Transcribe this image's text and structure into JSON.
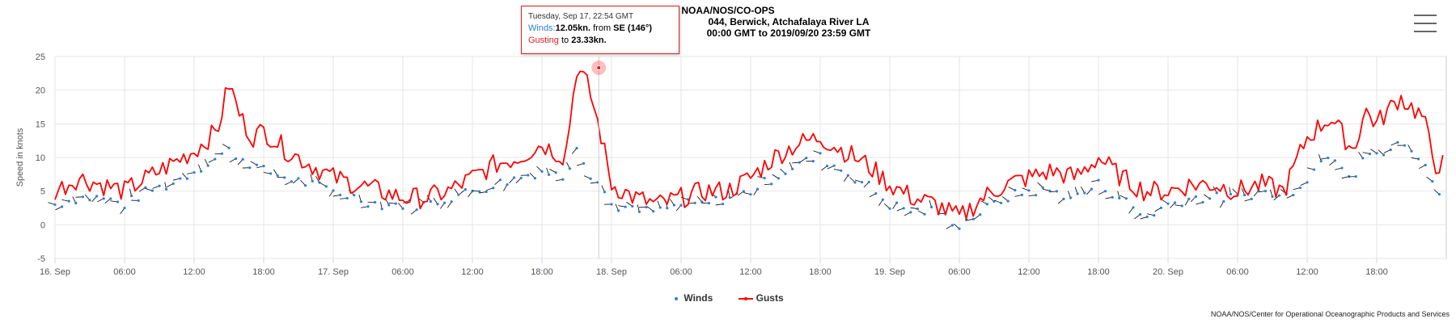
{
  "title": {
    "line1": "NOAA/NOS/CO-OPS",
    "line2": "044, Berwick, Atchafalaya River LA",
    "line3": "00:00 GMT to 2019/09/20 23:59 GMT"
  },
  "tooltip": {
    "date": "Tuesday, Sep 17, 22:54 GMT",
    "winds_label": "Winds:",
    "winds_value": "12.05kn.",
    "winds_from_text": "from",
    "winds_dir": "SE (146°)",
    "gust_label": "Gusting",
    "gust_to_text": "to",
    "gust_value": "23.33kn."
  },
  "legend": {
    "winds": "Winds",
    "gusts": "Gusts"
  },
  "credit": "NOAA/NOS/Center for Operational Oceanographic Products and Services",
  "colors": {
    "winds": "#2f7ed8",
    "gusts": "#ff0000",
    "arrows": "#000000",
    "grid": "#e6e6e6"
  },
  "chart_data": {
    "type": "line",
    "ylabel": "Speed in knots",
    "ylim": [
      -5,
      25
    ],
    "yticks": [
      -5,
      0,
      5,
      10,
      15,
      20,
      25
    ],
    "x_start": "2019-09-16 00:00 GMT",
    "x_end": "2019-09-20 23:59 GMT",
    "xtick_labels": [
      "16. Sep",
      "06:00",
      "12:00",
      "18:00",
      "17. Sep",
      "06:00",
      "12:00",
      "18:00",
      "18. Sep",
      "06:00",
      "12:00",
      "18:00",
      "19. Sep",
      "06:00",
      "12:00",
      "18:00",
      "20. Sep",
      "06:00",
      "12:00",
      "18:00"
    ],
    "grid": true,
    "legend_position": "bottom-center",
    "highlight": {
      "time": "2019-09-17 22:54 GMT",
      "gust": 23.33,
      "wind": 12.05,
      "direction_deg": 146
    },
    "series": [
      {
        "name": "Gusts",
        "hours": [
          0,
          2,
          4,
          6,
          8,
          10,
          12,
          14,
          15,
          16,
          17,
          18,
          20,
          22,
          24,
          26,
          28,
          30,
          32,
          34,
          36,
          38,
          40,
          42,
          44,
          45,
          46,
          47,
          48,
          50,
          52,
          54,
          56,
          58,
          60,
          62,
          64,
          66,
          68,
          70,
          72,
          74,
          76,
          78,
          80,
          82,
          84,
          86,
          88,
          90,
          92,
          94,
          96,
          98,
          100,
          102,
          104,
          106,
          108,
          110,
          112,
          113,
          114,
          116,
          118,
          119
        ],
        "values": [
          5,
          7,
          6,
          5,
          7,
          9,
          11,
          14,
          21,
          16,
          13,
          14,
          11,
          9,
          7,
          6,
          5,
          4,
          4,
          5,
          7,
          9,
          10,
          12,
          10,
          23.33,
          20.5,
          14,
          6,
          4,
          3,
          4,
          5,
          5,
          7,
          10,
          12,
          13,
          11,
          9,
          6,
          4,
          3,
          1,
          4,
          6,
          7,
          8,
          7,
          10,
          7,
          5,
          5,
          6,
          6,
          5,
          6,
          5,
          13,
          16,
          11,
          17,
          15,
          19,
          16,
          9
        ]
      },
      {
        "name": "Winds",
        "hours": [
          0,
          2,
          4,
          6,
          8,
          10,
          12,
          14,
          15,
          16,
          17,
          18,
          20,
          22,
          24,
          26,
          28,
          30,
          32,
          34,
          36,
          38,
          40,
          42,
          44,
          45,
          46,
          47,
          48,
          50,
          52,
          54,
          56,
          58,
          60,
          62,
          64,
          66,
          68,
          70,
          72,
          74,
          76,
          78,
          80,
          82,
          84,
          86,
          88,
          90,
          92,
          94,
          96,
          98,
          100,
          102,
          104,
          106,
          108,
          110,
          112,
          113,
          114,
          116,
          118,
          119
        ],
        "values": [
          3,
          4,
          4,
          3,
          5,
          6,
          8,
          10,
          11,
          10,
          9,
          8,
          7,
          6,
          5,
          4,
          3,
          3,
          3,
          4,
          5,
          6,
          7,
          8,
          7,
          12.05,
          8,
          6,
          3,
          2,
          2,
          3,
          3,
          4,
          5,
          7,
          9,
          10,
          8,
          6,
          3,
          2,
          2,
          0,
          2,
          4,
          5,
          5,
          4,
          6,
          4,
          1,
          3,
          4,
          4,
          4,
          5,
          4,
          7,
          11,
          7,
          11,
          10,
          12,
          10,
          5
        ]
      }
    ]
  }
}
